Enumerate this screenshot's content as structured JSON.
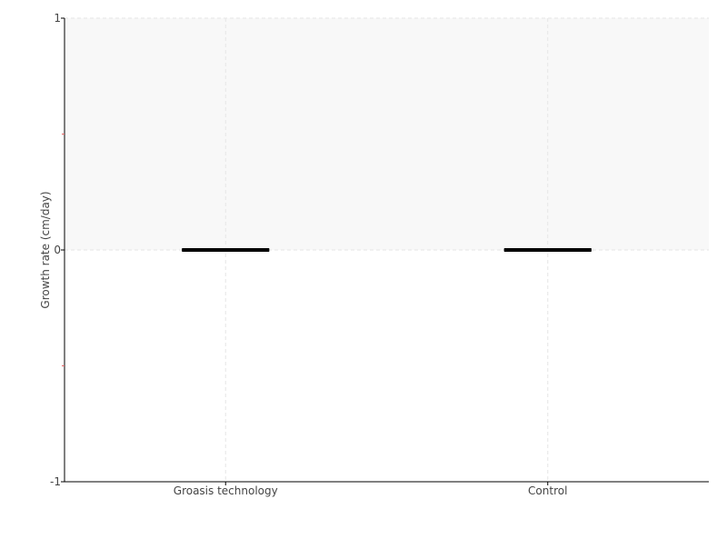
{
  "chart_data": {
    "type": "box",
    "categories": [
      "Groasis technology",
      "Control"
    ],
    "series": [
      {
        "values": [
          {
            "min": 0,
            "q1": 0,
            "median": 0,
            "q3": 0,
            "max": 0
          },
          {
            "min": 0,
            "q1": 0,
            "median": 0,
            "q3": 0,
            "max": 0
          }
        ]
      }
    ],
    "title": "",
    "xlabel": "",
    "ylabel": "Growth rate (cm/day)",
    "ylim": [
      -1,
      1
    ],
    "yticks": [
      "-1",
      "0",
      "1"
    ],
    "minor_yticks": [
      -0.5,
      0.5
    ],
    "grid": true,
    "shaded_band": [
      0,
      1
    ],
    "colors": {
      "box": "#000000",
      "band": "#f8f8f8",
      "grid": "#e6e6e6",
      "minor_tick": "#e06060",
      "axis": "#000000"
    }
  }
}
